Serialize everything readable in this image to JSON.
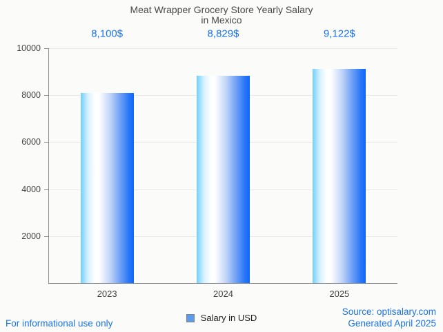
{
  "page": {
    "background": "#fbfbf9"
  },
  "title": {
    "line1": "Meat Wrapper Grocery Store Yearly Salary",
    "line2": "in Mexico"
  },
  "chart_data": {
    "type": "bar",
    "title": "Meat Wrapper Grocery Store Yearly Salary in Mexico",
    "categories": [
      "2023",
      "2024",
      "2025"
    ],
    "values": [
      8100,
      8829,
      9122
    ],
    "value_labels": [
      "8,100$",
      "8,829$",
      "9,122$"
    ],
    "series": [
      {
        "name": "Salary in USD",
        "values": [
          8100,
          8829,
          9122
        ]
      }
    ],
    "xlabel": "",
    "ylabel": "",
    "ylim": [
      0,
      10000
    ],
    "yticks": [
      2000,
      4000,
      6000,
      8000,
      10000
    ],
    "grid": true,
    "legend_position": "bottom-center",
    "colors": {
      "bar_gradient_left": "#6fcfff",
      "bar_gradient_middle": "#ffffff",
      "bar_gradient_right": "#0f65ff",
      "value_label": "#1a73e8",
      "axis": "#8f8f8f",
      "gridline": "#e8e8e6",
      "tick_text": "#424242"
    }
  },
  "legend": {
    "label": "Salary in USD",
    "marker_fill": "#5c9cec",
    "marker_border": "#808080"
  },
  "footer": {
    "left": "For informational use only",
    "source": "Source: optisalary.com",
    "generated": "Generated April 2025",
    "text_color": "#1a73e8"
  }
}
